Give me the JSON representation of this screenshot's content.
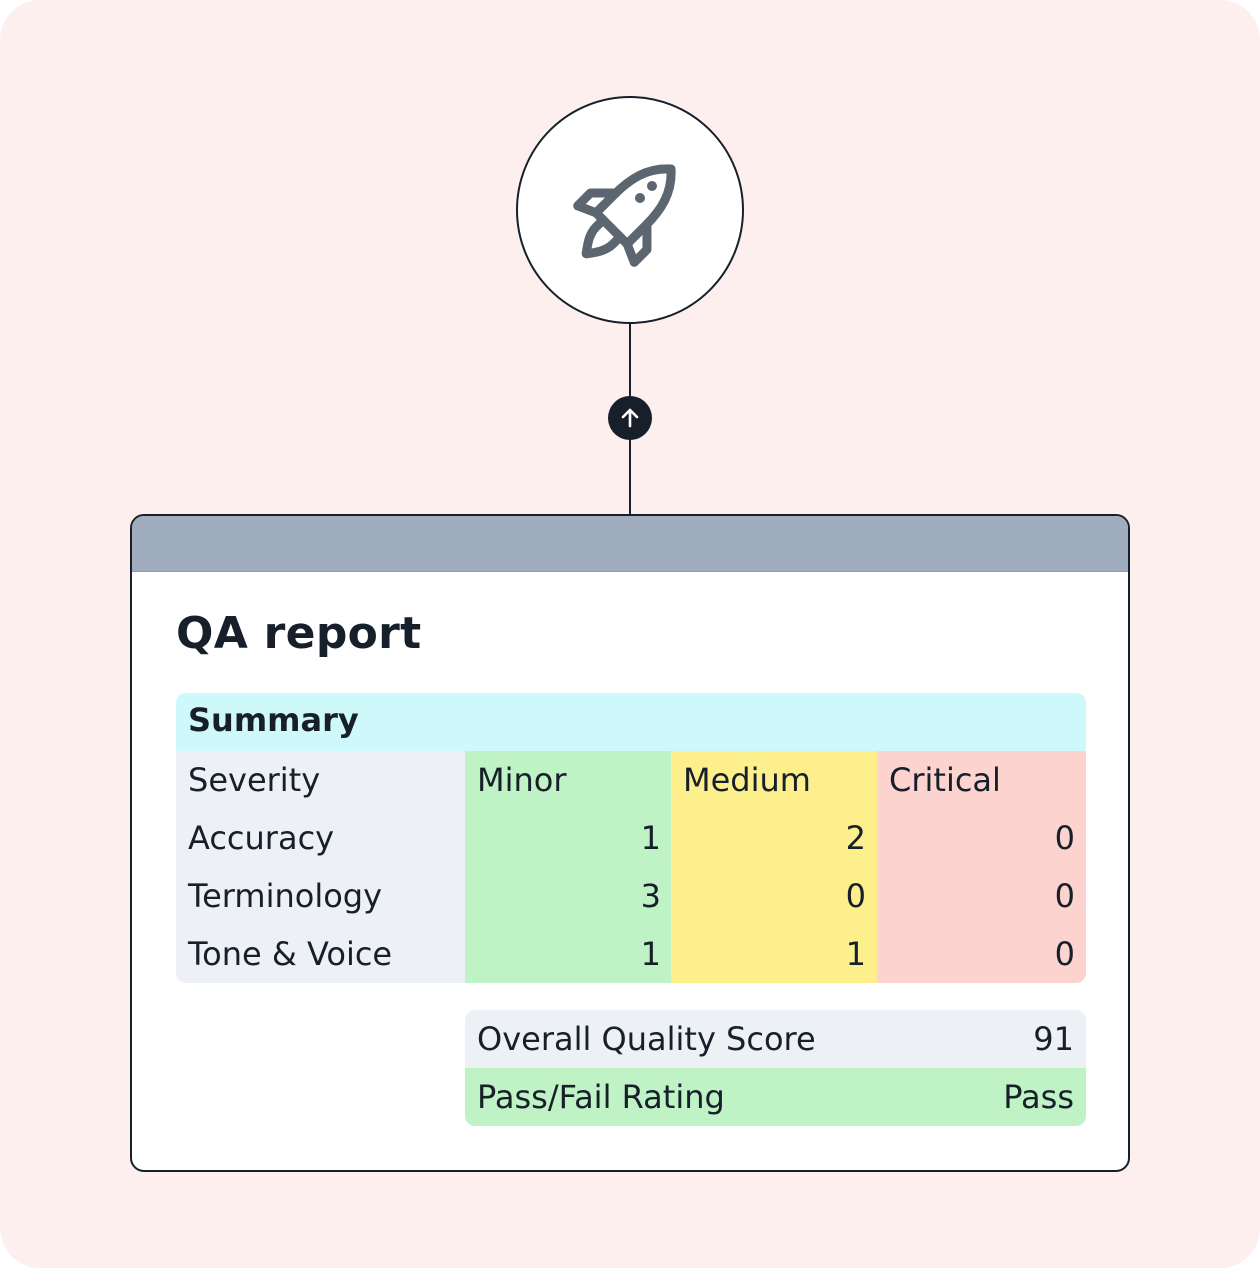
{
  "colors": {
    "background": "#fcefed",
    "window_bar": "#a0adbf",
    "summary_header": "#cff8fb",
    "minor": "#bff3c6",
    "medium": "#fdf08c",
    "critical": "#fcd3ce",
    "label_column": "#edf1f6",
    "ink": "#17202a"
  },
  "icons": {
    "top": "rocket-icon",
    "connector": "arrow-up-icon"
  },
  "report": {
    "title": "QA report",
    "summary": {
      "heading": "Summary",
      "row_header": "Severity",
      "columns": [
        "Minor",
        "Medium",
        "Critical"
      ],
      "rows": [
        {
          "label": "Accuracy",
          "values": [
            "1",
            "2",
            "0"
          ]
        },
        {
          "label": "Terminology",
          "values": [
            "3",
            "0",
            "0"
          ]
        },
        {
          "label": "Tone & Voice",
          "values": [
            "1",
            "1",
            "0"
          ]
        }
      ]
    },
    "score": {
      "label": "Overall Quality Score",
      "value": "91"
    },
    "rating": {
      "label": "Pass/Fail Rating",
      "value": "Pass"
    }
  }
}
